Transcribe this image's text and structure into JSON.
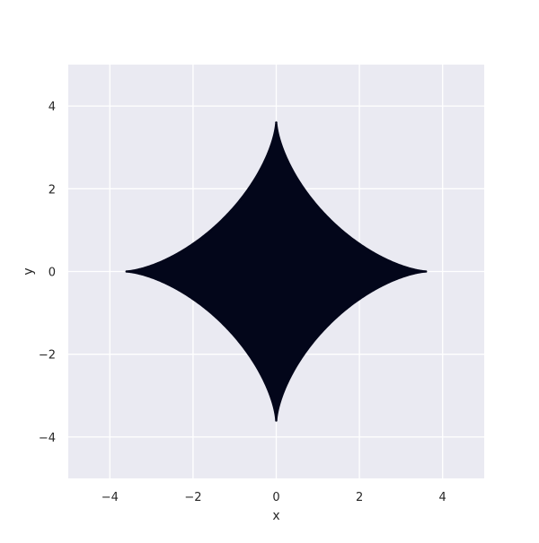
{
  "chart_data": {
    "type": "area",
    "title": "",
    "xlabel": "x",
    "ylabel": "y",
    "xlim": [
      -5,
      5
    ],
    "ylim": [
      -5,
      5
    ],
    "xticks": [
      -4,
      -2,
      0,
      2,
      4
    ],
    "yticks": [
      -4,
      -2,
      0,
      2,
      4
    ],
    "xtick_labels": [
      "−4",
      "−2",
      "0",
      "2",
      "4"
    ],
    "ytick_labels": [
      "−4",
      "−2",
      "0",
      "2",
      "4"
    ],
    "grid": true,
    "legend": "none",
    "series": [
      {
        "shape": "astroid",
        "equation": "|x|^(2/3) + |y|^(2/3) = a^(2/3)",
        "a": 3.6,
        "fill": true,
        "color": "#03061a"
      }
    ],
    "background_color": "#eaeaf2",
    "grid_color": "#ffffff"
  }
}
